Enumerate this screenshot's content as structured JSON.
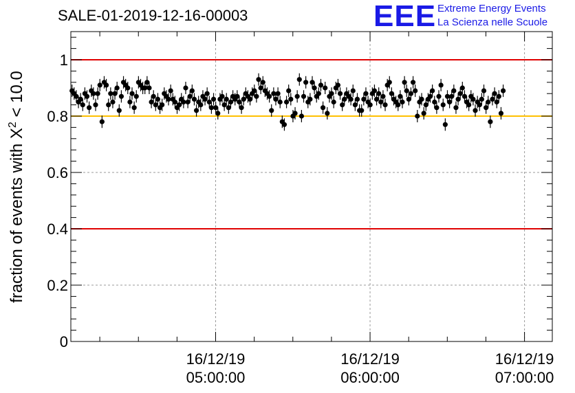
{
  "logo": {
    "mark": "EEE",
    "line1": "Extreme Energy Events",
    "line2": "La Scienza nelle Scuole"
  },
  "colors": {
    "red_line": "#e00000",
    "orange_line": "#ffc000",
    "logo_blue": "#1a1ae6",
    "marker": "#000000"
  },
  "chart_data": {
    "type": "scatter",
    "title": "SALE-01-2019-12-16-00003",
    "xlabel": "",
    "ylabel_prefix": "fraction of events with ",
    "ylabel_symbol": "X",
    "ylabel_sup": "2",
    "ylabel_suffix": " < 10.0",
    "ylim": [
      0,
      1.1
    ],
    "yticks": [
      0,
      0.2,
      0.4,
      0.6,
      0.8,
      1
    ],
    "ytick_labels": [
      "0",
      "0.2",
      "0.4",
      "0.6",
      "0.8",
      "1"
    ],
    "xlim_hours": [
      4.0625,
      7.18
    ],
    "xticks": [
      {
        "hour": 5,
        "date": "16/12/19",
        "time": "05:00:00"
      },
      {
        "hour": 6,
        "date": "16/12/19",
        "time": "06:00:00"
      },
      {
        "hour": 7,
        "date": "16/12/19",
        "time": "07:00:00"
      }
    ],
    "x_minor_step_hours": 0.25,
    "grid": true,
    "reference_lines": [
      {
        "y": 1.0,
        "color": "red"
      },
      {
        "y": 0.8,
        "color": "orange"
      },
      {
        "y": 0.4,
        "color": "red"
      }
    ],
    "error_bar": 0.022,
    "x_start_hour": 4.07,
    "x_step_hours": 0.01389,
    "values": [
      0.89,
      0.88,
      0.87,
      0.85,
      0.86,
      0.84,
      0.88,
      0.87,
      0.83,
      0.89,
      0.88,
      0.84,
      0.88,
      0.91,
      0.78,
      0.92,
      0.91,
      0.84,
      0.88,
      0.85,
      0.88,
      0.9,
      0.82,
      0.87,
      0.92,
      0.91,
      0.9,
      0.85,
      0.88,
      0.83,
      0.87,
      0.92,
      0.91,
      0.9,
      0.9,
      0.92,
      0.9,
      0.85,
      0.87,
      0.84,
      0.86,
      0.83,
      0.84,
      0.88,
      0.87,
      0.86,
      0.89,
      0.86,
      0.85,
      0.83,
      0.84,
      0.86,
      0.85,
      0.9,
      0.85,
      0.87,
      0.89,
      0.86,
      0.82,
      0.85,
      0.84,
      0.87,
      0.86,
      0.88,
      0.85,
      0.83,
      0.86,
      0.83,
      0.81,
      0.86,
      0.87,
      0.84,
      0.86,
      0.83,
      0.85,
      0.87,
      0.86,
      0.87,
      0.85,
      0.83,
      0.86,
      0.88,
      0.87,
      0.86,
      0.88,
      0.89,
      0.87,
      0.93,
      0.9,
      0.92,
      0.89,
      0.88,
      0.87,
      0.82,
      0.88,
      0.86,
      0.88,
      0.85,
      0.78,
      0.77,
      0.85,
      0.89,
      0.86,
      0.8,
      0.81,
      0.87,
      0.93,
      0.8,
      0.87,
      0.92,
      0.85,
      0.86,
      0.92,
      0.9,
      0.87,
      0.88,
      0.91,
      0.83,
      0.9,
      0.81,
      0.87,
      0.88,
      0.85,
      0.9,
      0.91,
      0.88,
      0.84,
      0.86,
      0.88,
      0.87,
      0.86,
      0.89,
      0.84,
      0.86,
      0.82,
      0.82,
      0.86,
      0.88,
      0.85,
      0.84,
      0.88,
      0.89,
      0.86,
      0.88,
      0.85,
      0.87,
      0.84,
      0.91,
      0.92,
      0.88,
      0.86,
      0.85,
      0.84,
      0.87,
      0.85,
      0.92,
      0.89,
      0.86,
      0.88,
      0.92,
      0.89,
      0.8,
      0.85,
      0.86,
      0.81,
      0.84,
      0.86,
      0.87,
      0.89,
      0.85,
      0.83,
      0.87,
      0.91,
      0.84,
      0.77,
      0.87,
      0.85,
      0.87,
      0.89,
      0.83,
      0.86,
      0.88,
      0.9,
      0.87,
      0.85,
      0.84,
      0.87,
      0.86,
      0.82,
      0.85,
      0.84,
      0.86,
      0.89,
      0.83,
      0.85,
      0.78,
      0.86,
      0.88,
      0.85,
      0.87,
      0.81,
      0.89
    ]
  }
}
